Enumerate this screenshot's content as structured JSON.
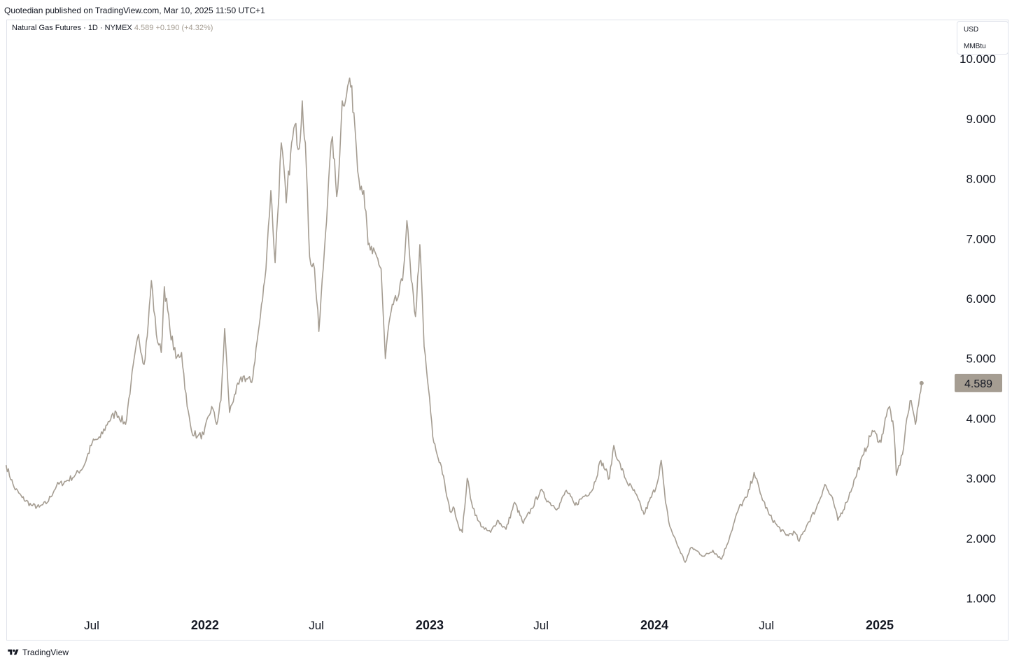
{
  "header": {
    "published": "Quotedian published on TradingView.com, Mar 10, 2025 11:50 UTC+1"
  },
  "legend": {
    "symbol": "Natural Gas Futures · 1D · NYMEX",
    "last": "4.589",
    "change": "+0.190 (+4.32%)"
  },
  "units": {
    "currency": "USD",
    "unit": "MMBtu"
  },
  "footer": {
    "brand": "TradingView"
  },
  "colors": {
    "line": "#a59d92",
    "price_tag_bg": "#a59d92",
    "grid": "none",
    "border": "#e0e3eb"
  },
  "icons": {
    "logo": "tradingview-logo-icon"
  },
  "chart_data": {
    "type": "line",
    "grid": false,
    "price_scale": "right",
    "last_price": "4.589",
    "ylim": [
      0.6,
      10.5
    ],
    "y_ticks": [
      "1.000",
      "2.000",
      "3.000",
      "4.000",
      "5.000",
      "6.000",
      "7.000",
      "8.000",
      "9.000",
      "10.000"
    ],
    "x_ticks": [
      {
        "label": "Jul",
        "date": "2021-07-01"
      },
      {
        "label": "2022",
        "date": "2022-01-01"
      },
      {
        "label": "Jul",
        "date": "2022-07-01"
      },
      {
        "label": "2023",
        "date": "2023-01-01"
      },
      {
        "label": "Jul",
        "date": "2023-07-01"
      },
      {
        "label": "2024",
        "date": "2024-01-01"
      },
      {
        "label": "Jul",
        "date": "2024-07-01"
      },
      {
        "label": "2025",
        "date": "2025-01-01"
      }
    ],
    "series": [
      {
        "points": [
          [
            "2021-02-12",
            3.22
          ],
          [
            "2021-02-25",
            2.85
          ],
          [
            "2021-03-10",
            2.68
          ],
          [
            "2021-03-25",
            2.55
          ],
          [
            "2021-04-07",
            2.52
          ],
          [
            "2021-04-20",
            2.6
          ],
          [
            "2021-05-05",
            2.88
          ],
          [
            "2021-05-20",
            2.95
          ],
          [
            "2021-06-04",
            3.05
          ],
          [
            "2021-06-18",
            3.2
          ],
          [
            "2021-07-02",
            3.6
          ],
          [
            "2021-07-15",
            3.68
          ],
          [
            "2021-07-28",
            3.95
          ],
          [
            "2021-08-10",
            4.1
          ],
          [
            "2021-08-25",
            3.9
          ],
          [
            "2021-09-03",
            4.6
          ],
          [
            "2021-09-15",
            5.4
          ],
          [
            "2021-09-24",
            4.9
          ],
          [
            "2021-10-01",
            5.6
          ],
          [
            "2021-10-06",
            6.3
          ],
          [
            "2021-10-14",
            5.4
          ],
          [
            "2021-10-22",
            5.1
          ],
          [
            "2021-10-27",
            6.2
          ],
          [
            "2021-11-05",
            5.5
          ],
          [
            "2021-11-15",
            5.0
          ],
          [
            "2021-11-24",
            5.1
          ],
          [
            "2021-12-03",
            4.2
          ],
          [
            "2021-12-10",
            3.8
          ],
          [
            "2021-12-20",
            3.7
          ],
          [
            "2021-12-30",
            3.73
          ],
          [
            "2022-01-12",
            4.2
          ],
          [
            "2022-01-20",
            3.9
          ],
          [
            "2022-01-27",
            4.3
          ],
          [
            "2022-02-02",
            5.5
          ],
          [
            "2022-02-10",
            4.1
          ],
          [
            "2022-02-18",
            4.4
          ],
          [
            "2022-03-04",
            4.7
          ],
          [
            "2022-03-18",
            4.6
          ],
          [
            "2022-04-01",
            5.7
          ],
          [
            "2022-04-08",
            6.3
          ],
          [
            "2022-04-18",
            7.8
          ],
          [
            "2022-04-25",
            6.6
          ],
          [
            "2022-05-05",
            8.6
          ],
          [
            "2022-05-13",
            7.6
          ],
          [
            "2022-05-20",
            8.4
          ],
          [
            "2022-05-27",
            8.9
          ],
          [
            "2022-06-03",
            8.5
          ],
          [
            "2022-06-08",
            9.3
          ],
          [
            "2022-06-13",
            8.6
          ],
          [
            "2022-06-20",
            6.7
          ],
          [
            "2022-06-28",
            6.5
          ],
          [
            "2022-07-05",
            5.45
          ],
          [
            "2022-07-14",
            6.8
          ],
          [
            "2022-07-21",
            8.0
          ],
          [
            "2022-07-27",
            8.7
          ],
          [
            "2022-08-03",
            7.7
          ],
          [
            "2022-08-08",
            8.4
          ],
          [
            "2022-08-12",
            9.3
          ],
          [
            "2022-08-19",
            9.4
          ],
          [
            "2022-08-24",
            9.68
          ],
          [
            "2022-08-31",
            9.1
          ],
          [
            "2022-09-08",
            8.0
          ],
          [
            "2022-09-16",
            7.8
          ],
          [
            "2022-09-23",
            6.9
          ],
          [
            "2022-09-30",
            6.75
          ],
          [
            "2022-10-07",
            6.7
          ],
          [
            "2022-10-14",
            6.5
          ],
          [
            "2022-10-21",
            5.0
          ],
          [
            "2022-10-27",
            5.6
          ],
          [
            "2022-11-03",
            5.9
          ],
          [
            "2022-11-10",
            6.0
          ],
          [
            "2022-11-18",
            6.3
          ],
          [
            "2022-11-25",
            7.3
          ],
          [
            "2022-12-02",
            6.3
          ],
          [
            "2022-12-09",
            5.7
          ],
          [
            "2022-12-16",
            6.9
          ],
          [
            "2022-12-23",
            5.2
          ],
          [
            "2022-12-30",
            4.5
          ],
          [
            "2023-01-06",
            3.7
          ],
          [
            "2023-01-13",
            3.4
          ],
          [
            "2023-01-20",
            3.2
          ],
          [
            "2023-01-27",
            2.8
          ],
          [
            "2023-02-03",
            2.45
          ],
          [
            "2023-02-10",
            2.5
          ],
          [
            "2023-02-17",
            2.2
          ],
          [
            "2023-02-23",
            2.1
          ],
          [
            "2023-03-03",
            3.0
          ],
          [
            "2023-03-10",
            2.6
          ],
          [
            "2023-03-20",
            2.3
          ],
          [
            "2023-03-31",
            2.15
          ],
          [
            "2023-04-10",
            2.1
          ],
          [
            "2023-04-21",
            2.3
          ],
          [
            "2023-05-05",
            2.15
          ],
          [
            "2023-05-19",
            2.6
          ],
          [
            "2023-06-02",
            2.25
          ],
          [
            "2023-06-16",
            2.5
          ],
          [
            "2023-06-30",
            2.8
          ],
          [
            "2023-07-14",
            2.6
          ],
          [
            "2023-07-28",
            2.5
          ],
          [
            "2023-08-11",
            2.8
          ],
          [
            "2023-08-25",
            2.55
          ],
          [
            "2023-09-08",
            2.7
          ],
          [
            "2023-09-22",
            2.8
          ],
          [
            "2023-10-06",
            3.3
          ],
          [
            "2023-10-20",
            3.0
          ],
          [
            "2023-10-27",
            3.55
          ],
          [
            "2023-11-03",
            3.3
          ],
          [
            "2023-11-17",
            2.95
          ],
          [
            "2023-12-01",
            2.75
          ],
          [
            "2023-12-15",
            2.4
          ],
          [
            "2024-01-05",
            2.9
          ],
          [
            "2024-01-12",
            3.3
          ],
          [
            "2024-01-19",
            2.6
          ],
          [
            "2024-01-26",
            2.2
          ],
          [
            "2024-02-09",
            1.85
          ],
          [
            "2024-02-20",
            1.6
          ],
          [
            "2024-03-01",
            1.85
          ],
          [
            "2024-03-08",
            1.8
          ],
          [
            "2024-03-22",
            1.7
          ],
          [
            "2024-04-05",
            1.8
          ],
          [
            "2024-04-19",
            1.65
          ],
          [
            "2024-05-03",
            2.05
          ],
          [
            "2024-05-17",
            2.5
          ],
          [
            "2024-05-31",
            2.7
          ],
          [
            "2024-06-11",
            3.1
          ],
          [
            "2024-06-21",
            2.75
          ],
          [
            "2024-07-05",
            2.4
          ],
          [
            "2024-07-19",
            2.2
          ],
          [
            "2024-08-02",
            2.05
          ],
          [
            "2024-08-16",
            2.1
          ],
          [
            "2024-08-23",
            1.95
          ],
          [
            "2024-09-06",
            2.25
          ],
          [
            "2024-09-20",
            2.5
          ],
          [
            "2024-10-04",
            2.9
          ],
          [
            "2024-10-18",
            2.6
          ],
          [
            "2024-10-25",
            2.3
          ],
          [
            "2024-11-08",
            2.6
          ],
          [
            "2024-11-22",
            3.0
          ],
          [
            "2024-12-06",
            3.4
          ],
          [
            "2024-12-20",
            3.8
          ],
          [
            "2025-01-03",
            3.6
          ],
          [
            "2025-01-10",
            4.0
          ],
          [
            "2025-01-17",
            4.2
          ],
          [
            "2025-01-24",
            3.8
          ],
          [
            "2025-01-28",
            3.05
          ],
          [
            "2025-02-07",
            3.4
          ],
          [
            "2025-02-14",
            4.0
          ],
          [
            "2025-02-21",
            4.3
          ],
          [
            "2025-02-28",
            3.9
          ],
          [
            "2025-03-03",
            4.15
          ],
          [
            "2025-03-07",
            4.4
          ],
          [
            "2025-03-10",
            4.589
          ]
        ]
      }
    ]
  }
}
